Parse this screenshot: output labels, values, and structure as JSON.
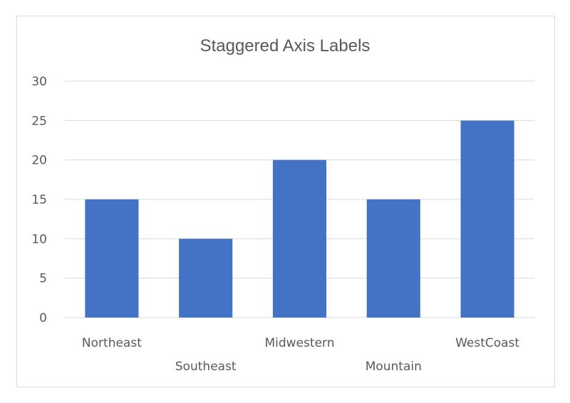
{
  "chart_data": {
    "type": "bar",
    "title": "Staggered Axis Labels",
    "categories": [
      "Northeast",
      "Southeast",
      "Midwestern",
      "Mountain",
      "WestCoast"
    ],
    "values": [
      15,
      10,
      20,
      15,
      25
    ],
    "ylim": [
      0,
      30
    ],
    "yticks": [
      "0",
      "5",
      "10",
      "15",
      "20",
      "25",
      "30"
    ],
    "xlabel": "",
    "ylabel": "",
    "grid": true,
    "bar_color": "#4472c4",
    "legend": "none",
    "category_labels_staggered": true
  }
}
